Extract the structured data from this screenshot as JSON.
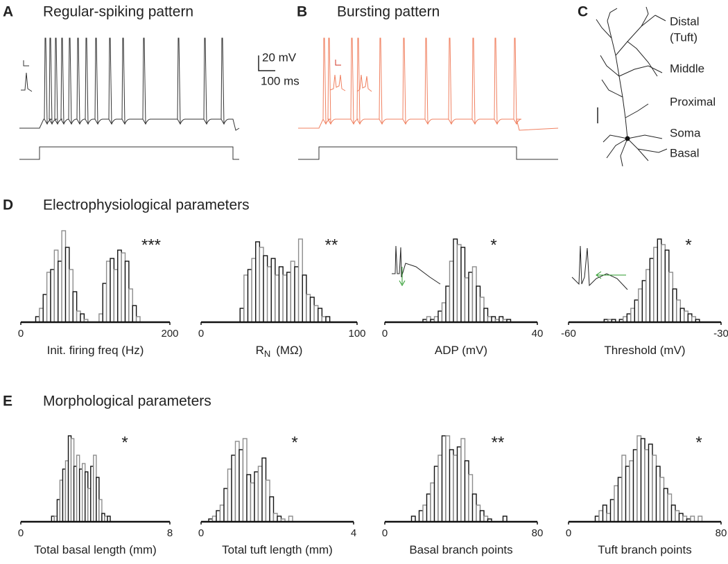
{
  "panel_c": {
    "letter": "C",
    "labels": [
      "Distal",
      "(Tuft)",
      "Middle",
      "Proximal",
      "Soma",
      "Basal"
    ]
  },
  "sections": [
    {
      "letter": "D",
      "title": "Electrophysiological parameters"
    },
    {
      "letter": "E",
      "title": "Morphological parameters"
    }
  ],
  "scale_bar": {
    "voltage": "20 mV",
    "time": "100 ms"
  },
  "chart_data": [
    {
      "type": "trace",
      "panel": "A",
      "title": "Regular-spiking pattern",
      "color": "#333333",
      "xlim": [
        0,
        1268
      ],
      "stimulus_on": 116,
      "stimulus_off": 1232,
      "spike_times": [
        148,
        176,
        208,
        244,
        288,
        336,
        384,
        440,
        520,
        596,
        716,
        916,
        1068,
        1168
      ]
    },
    {
      "type": "trace",
      "panel": "B",
      "title": "Bursting pattern",
      "color": "#f08060",
      "xlim": [
        0,
        1500
      ],
      "stimulus_on": 120,
      "stimulus_off": 1260,
      "spike_times": [
        148,
        176,
        308,
        344,
        472,
        608,
        736,
        872,
        1008,
        1136,
        1248
      ]
    },
    {
      "type": "histogram",
      "xlabel": "Init. firing freq (Hz)",
      "annotation": "***",
      "xlim": [
        0,
        200
      ],
      "xticks": [
        0,
        200
      ],
      "bar_colors": [
        "#111111",
        "#8c8c8c"
      ],
      "bins": [
        20,
        25,
        30,
        35,
        40,
        45,
        50,
        55,
        60,
        65,
        70,
        75,
        80,
        85,
        90,
        95,
        100,
        105,
        110,
        115,
        120,
        125,
        130,
        135,
        140,
        145,
        150,
        155,
        160
      ],
      "counts": [
        2,
        5,
        10,
        18,
        19,
        26,
        22,
        33,
        27,
        19,
        11,
        4,
        3,
        1,
        0,
        0,
        0,
        3,
        14,
        22,
        23,
        19,
        26,
        25,
        22,
        12,
        6,
        2
      ]
    },
    {
      "type": "histogram",
      "xlabel": "R",
      "xlabel_sub": "N",
      "xlabel_unit": "(MΩ)",
      "annotation": "**",
      "xlim": [
        0,
        100
      ],
      "xticks": [
        0,
        100
      ],
      "bar_colors": [
        "#111111",
        "#8c8c8c"
      ],
      "bins": [
        25,
        27.5,
        30,
        32.5,
        35,
        37.5,
        40,
        42.5,
        45,
        47.5,
        50,
        52.5,
        55,
        57.5,
        60,
        62.5,
        65,
        67.5,
        70,
        72.5,
        75,
        77.5,
        80,
        82.5
      ],
      "counts": [
        5,
        17,
        19,
        23,
        29,
        27,
        24,
        20,
        23,
        17,
        20,
        17,
        18,
        22,
        20,
        30,
        17,
        10,
        9,
        6,
        5,
        2,
        2
      ]
    },
    {
      "type": "histogram",
      "xlabel": "ADP (mV)",
      "annotation": "*",
      "xlim": [
        0,
        40
      ],
      "xticks": [
        0,
        40
      ],
      "bar_colors": [
        "#111111",
        "#8c8c8c"
      ],
      "bins": [
        10,
        11,
        12,
        13,
        14,
        15,
        16,
        17,
        18,
        19,
        20,
        21,
        22,
        23,
        24,
        25,
        26,
        27,
        28,
        29,
        30,
        31,
        32,
        33
      ],
      "counts": [
        1,
        2,
        1,
        2,
        4,
        7,
        13,
        22,
        30,
        28,
        27,
        16,
        18,
        20,
        13,
        9,
        5,
        2,
        2,
        1,
        2,
        1,
        1
      ]
    },
    {
      "type": "histogram",
      "xlabel": "Threshold (mV)",
      "annotation": "*",
      "xlim": [
        -60,
        -30
      ],
      "xticks": [
        -60,
        -30
      ],
      "bar_colors": [
        "#111111",
        "#8c8c8c"
      ],
      "bins": [
        -53,
        -52.25,
        -51.5,
        -50.75,
        -50,
        -49.25,
        -48.5,
        -47.75,
        -47,
        -46.25,
        -45.5,
        -44.75,
        -44,
        -43.25,
        -42.5,
        -41.75,
        -41,
        -40.25,
        -39.5,
        -38.75,
        -38,
        -37.25,
        -36.5,
        -35.75,
        -35,
        -34.25
      ],
      "counts": [
        1,
        1,
        1,
        0,
        1,
        2,
        3,
        5,
        8,
        12,
        15,
        19,
        23,
        27,
        30,
        28,
        26,
        18,
        12,
        8,
        5,
        4,
        3,
        2,
        1
      ]
    },
    {
      "type": "histogram",
      "xlabel": "Total basal length (mm)",
      "annotation": "*",
      "xlim": [
        0,
        8
      ],
      "xticks": [
        0,
        8
      ],
      "bar_colors": [
        "#111111",
        "#8c8c8c"
      ],
      "bins": [
        1.65,
        1.8,
        1.95,
        2.1,
        2.25,
        2.4,
        2.55,
        2.7,
        2.85,
        3.0,
        3.15,
        3.3,
        3.45,
        3.6,
        3.75,
        3.9,
        4.05,
        4.2,
        4.35,
        4.5,
        4.65,
        4.8
      ],
      "counts": [
        2,
        2,
        8,
        15,
        19,
        22,
        31,
        30,
        20,
        24,
        19,
        21,
        18,
        12,
        20,
        24,
        16,
        8,
        3,
        2,
        2
      ]
    },
    {
      "type": "histogram",
      "xlabel": "Total tuft length (mm)",
      "annotation": "*",
      "xlim": [
        0,
        4
      ],
      "xticks": [
        0,
        4
      ],
      "bar_colors": [
        "#111111",
        "#8c8c8c"
      ],
      "bins": [
        0.2,
        0.3,
        0.4,
        0.5,
        0.6,
        0.7,
        0.8,
        0.9,
        1.0,
        1.1,
        1.2,
        1.3,
        1.4,
        1.5,
        1.6,
        1.7,
        1.8,
        1.9,
        2.0,
        2.1,
        2.2,
        2.3,
        2.4
      ],
      "counts": [
        1,
        2,
        4,
        6,
        12,
        19,
        24,
        29,
        26,
        30,
        17,
        14,
        18,
        20,
        23,
        15,
        9,
        3,
        2,
        1,
        0,
        2
      ]
    },
    {
      "type": "histogram",
      "xlabel": "Basal branch points",
      "annotation": "**",
      "xlim": [
        0,
        80
      ],
      "xticks": [
        0,
        80
      ],
      "bar_colors": [
        "#111111",
        "#8c8c8c"
      ],
      "bins": [
        14,
        16,
        18,
        20,
        22,
        24,
        26,
        28,
        30,
        32,
        34,
        36,
        38,
        40,
        42,
        44,
        46,
        48,
        50,
        52,
        54,
        56,
        58,
        60,
        62,
        64
      ],
      "counts": [
        2,
        0,
        4,
        6,
        10,
        14,
        20,
        24,
        31,
        31,
        26,
        24,
        27,
        30,
        22,
        17,
        10,
        6,
        4,
        2,
        1,
        0,
        0,
        0,
        2
      ]
    },
    {
      "type": "histogram",
      "xlabel": "Tuft branch points",
      "annotation": "*",
      "xlim": [
        0,
        80
      ],
      "xticks": [
        0,
        80
      ],
      "bar_colors": [
        "#111111",
        "#8c8c8c"
      ],
      "bins": [
        14,
        16,
        18,
        20,
        22,
        24,
        26,
        28,
        30,
        32,
        34,
        36,
        38,
        40,
        42,
        44,
        46,
        48,
        50,
        52,
        54,
        56,
        58,
        60,
        62,
        64,
        66,
        68,
        70
      ],
      "counts": [
        2,
        4,
        6,
        3,
        8,
        13,
        16,
        24,
        20,
        22,
        26,
        31,
        30,
        26,
        28,
        24,
        20,
        16,
        12,
        10,
        6,
        4,
        3,
        2,
        1,
        2,
        0,
        2
      ]
    }
  ]
}
